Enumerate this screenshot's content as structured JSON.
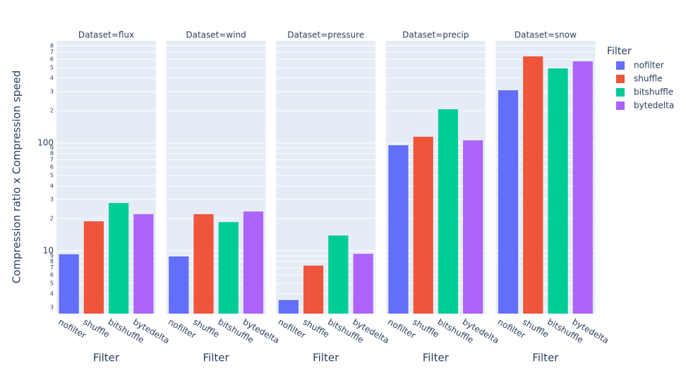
{
  "chart_data": {
    "type": "bar",
    "ylabel": "Compression ratio x Compression speed",
    "xlabel": "Filter",
    "legend_title": "Filter",
    "log_y": true,
    "grid": true,
    "categories": [
      "nofilter",
      "shuffle",
      "bitshuffle",
      "bytedelta"
    ],
    "colors": [
      "#636efa",
      "#ef553b",
      "#00cc96",
      "#ab63fa"
    ],
    "facets": [
      {
        "title": "Dataset=flux",
        "values": [
          9.3,
          18.8,
          27.8,
          21.9
        ]
      },
      {
        "title": "Dataset=wind",
        "values": [
          8.9,
          21.9,
          18.5,
          23.2
        ]
      },
      {
        "title": "Dataset=pressure",
        "values": [
          3.5,
          7.3,
          13.9,
          9.4
        ]
      },
      {
        "title": "Dataset=precip",
        "values": [
          95.5,
          114.5,
          206,
          106
        ]
      },
      {
        "title": "Dataset=snow",
        "values": [
          309,
          637,
          493,
          573
        ]
      }
    ],
    "ylim": [
      2.62,
      887
    ],
    "yticks": [
      3,
      4,
      5,
      6,
      7,
      8,
      9,
      10,
      {
        "value": 20,
        "label": "2"
      },
      {
        "value": 30,
        "label": "3"
      },
      {
        "value": 40,
        "label": "4"
      },
      {
        "value": 50,
        "label": "5"
      },
      {
        "value": 60,
        "label": "6"
      },
      {
        "value": 70,
        "label": "7"
      },
      {
        "value": 80,
        "label": "8"
      },
      {
        "value": 90,
        "label": "9"
      },
      100,
      {
        "value": 200,
        "label": "2"
      },
      {
        "value": 300,
        "label": "3"
      },
      {
        "value": 400,
        "label": "4"
      },
      {
        "value": 500,
        "label": "5"
      },
      {
        "value": 600,
        "label": "6"
      },
      {
        "value": 700,
        "label": "7"
      },
      {
        "value": 800,
        "label": "8"
      }
    ]
  }
}
